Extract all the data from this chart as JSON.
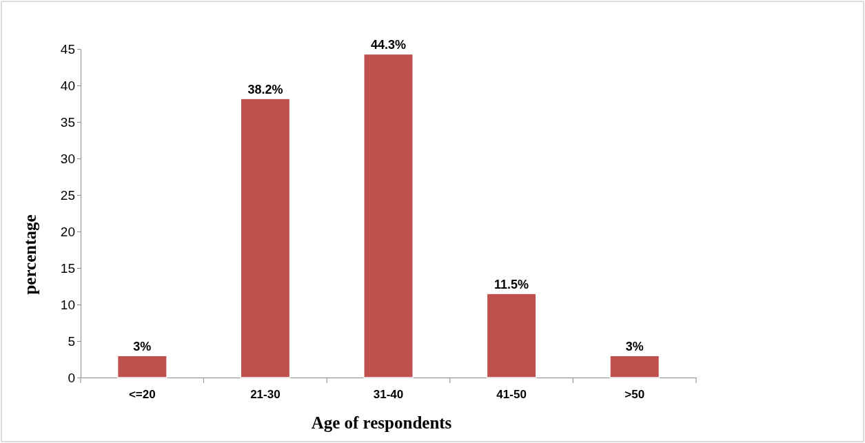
{
  "chart_data": {
    "type": "bar",
    "xlabel": "Age of respondents",
    "ylabel": "percentage",
    "categories": [
      "<=20",
      "21-30",
      "31-40",
      "41-50",
      ">50"
    ],
    "values": [
      3,
      38.2,
      44.3,
      11.5,
      3
    ],
    "value_labels": [
      "3%",
      "38.2%",
      "44.3%",
      "11.5%",
      "3%"
    ],
    "color": "#c0504d",
    "ylim": [
      0,
      45
    ],
    "yticks": [
      0,
      5,
      10,
      15,
      20,
      25,
      30,
      35,
      40,
      45
    ],
    "grid": false
  }
}
